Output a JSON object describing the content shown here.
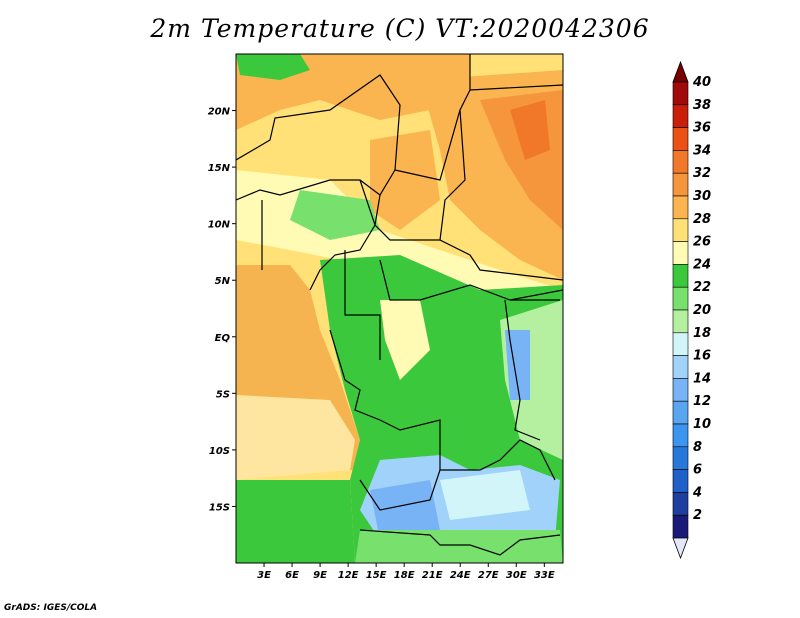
{
  "title": "2m Temperature (C) VT:2020042306",
  "footer": "GrADS: IGES/COLA",
  "map": {
    "projection": "latlon",
    "lon_range": [
      0,
      35
    ],
    "lat_range": [
      -20,
      25
    ],
    "lat_ticks": [
      {
        "value": 20,
        "label": "20N"
      },
      {
        "value": 15,
        "label": "15N"
      },
      {
        "value": 10,
        "label": "10N"
      },
      {
        "value": 5,
        "label": "5N"
      },
      {
        "value": 0,
        "label": "EQ"
      },
      {
        "value": -5,
        "label": "5S"
      },
      {
        "value": -10,
        "label": "10S"
      },
      {
        "value": -15,
        "label": "15S"
      }
    ],
    "lon_ticks": [
      {
        "value": 3,
        "label": "3E"
      },
      {
        "value": 6,
        "label": "6E"
      },
      {
        "value": 9,
        "label": "9E"
      },
      {
        "value": 12,
        "label": "12E"
      },
      {
        "value": 15,
        "label": "15E"
      },
      {
        "value": 18,
        "label": "18E"
      },
      {
        "value": 21,
        "label": "21E"
      },
      {
        "value": 24,
        "label": "24E"
      },
      {
        "value": 27,
        "label": "27E"
      },
      {
        "value": 30,
        "label": "30E"
      },
      {
        "value": 33,
        "label": "33E"
      }
    ]
  },
  "colorbar": {
    "levels": [
      {
        "label": "2",
        "color": "#1a1a78"
      },
      {
        "label": "4",
        "color": "#1e3fa0"
      },
      {
        "label": "6",
        "color": "#1e5fc8"
      },
      {
        "label": "8",
        "color": "#2878dc"
      },
      {
        "label": "10",
        "color": "#3c96f0"
      },
      {
        "label": "12",
        "color": "#5aa5f0"
      },
      {
        "label": "14",
        "color": "#78b4f5"
      },
      {
        "label": "16",
        "color": "#a0d2fa"
      },
      {
        "label": "18",
        "color": "#d2f5fa"
      },
      {
        "label": "20",
        "color": "#b4f0a0"
      },
      {
        "label": "22",
        "color": "#78e16e"
      },
      {
        "label": "24",
        "color": "#3cc83c"
      },
      {
        "label": "26",
        "color": "#fffab4"
      },
      {
        "label": "28",
        "color": "#ffe178"
      },
      {
        "label": "30",
        "color": "#fab450"
      },
      {
        "label": "32",
        "color": "#f5963c"
      },
      {
        "label": "34",
        "color": "#f07828"
      },
      {
        "label": "36",
        "color": "#eb5014"
      },
      {
        "label": "38",
        "color": "#c81e0a"
      },
      {
        "label": "40",
        "color": "#a00a0a"
      }
    ],
    "under_color": "#e6e6fa",
    "over_color": "#780000"
  },
  "colors": {
    "ocean": "#f5b450",
    "ocean_south": "#ffe6a0",
    "land_green": "#3cc83c",
    "boundary": "#000000"
  }
}
